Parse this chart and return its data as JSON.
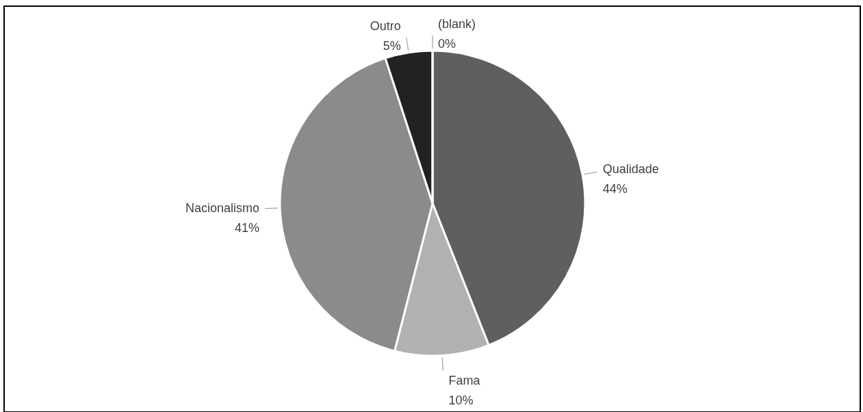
{
  "chart_data": {
    "type": "pie",
    "categories": [
      "Qualidade",
      "Fama",
      "Nacionalismo",
      "Outro",
      "(blank)"
    ],
    "values": [
      44,
      10,
      41,
      5,
      0
    ],
    "value_labels": [
      "44%",
      "10%",
      "41%",
      "5%",
      "0%"
    ],
    "colors": [
      "#5f5f5f",
      "#b1b1b1",
      "#8b8b8b",
      "#222222",
      "#7f7f7f"
    ]
  }
}
